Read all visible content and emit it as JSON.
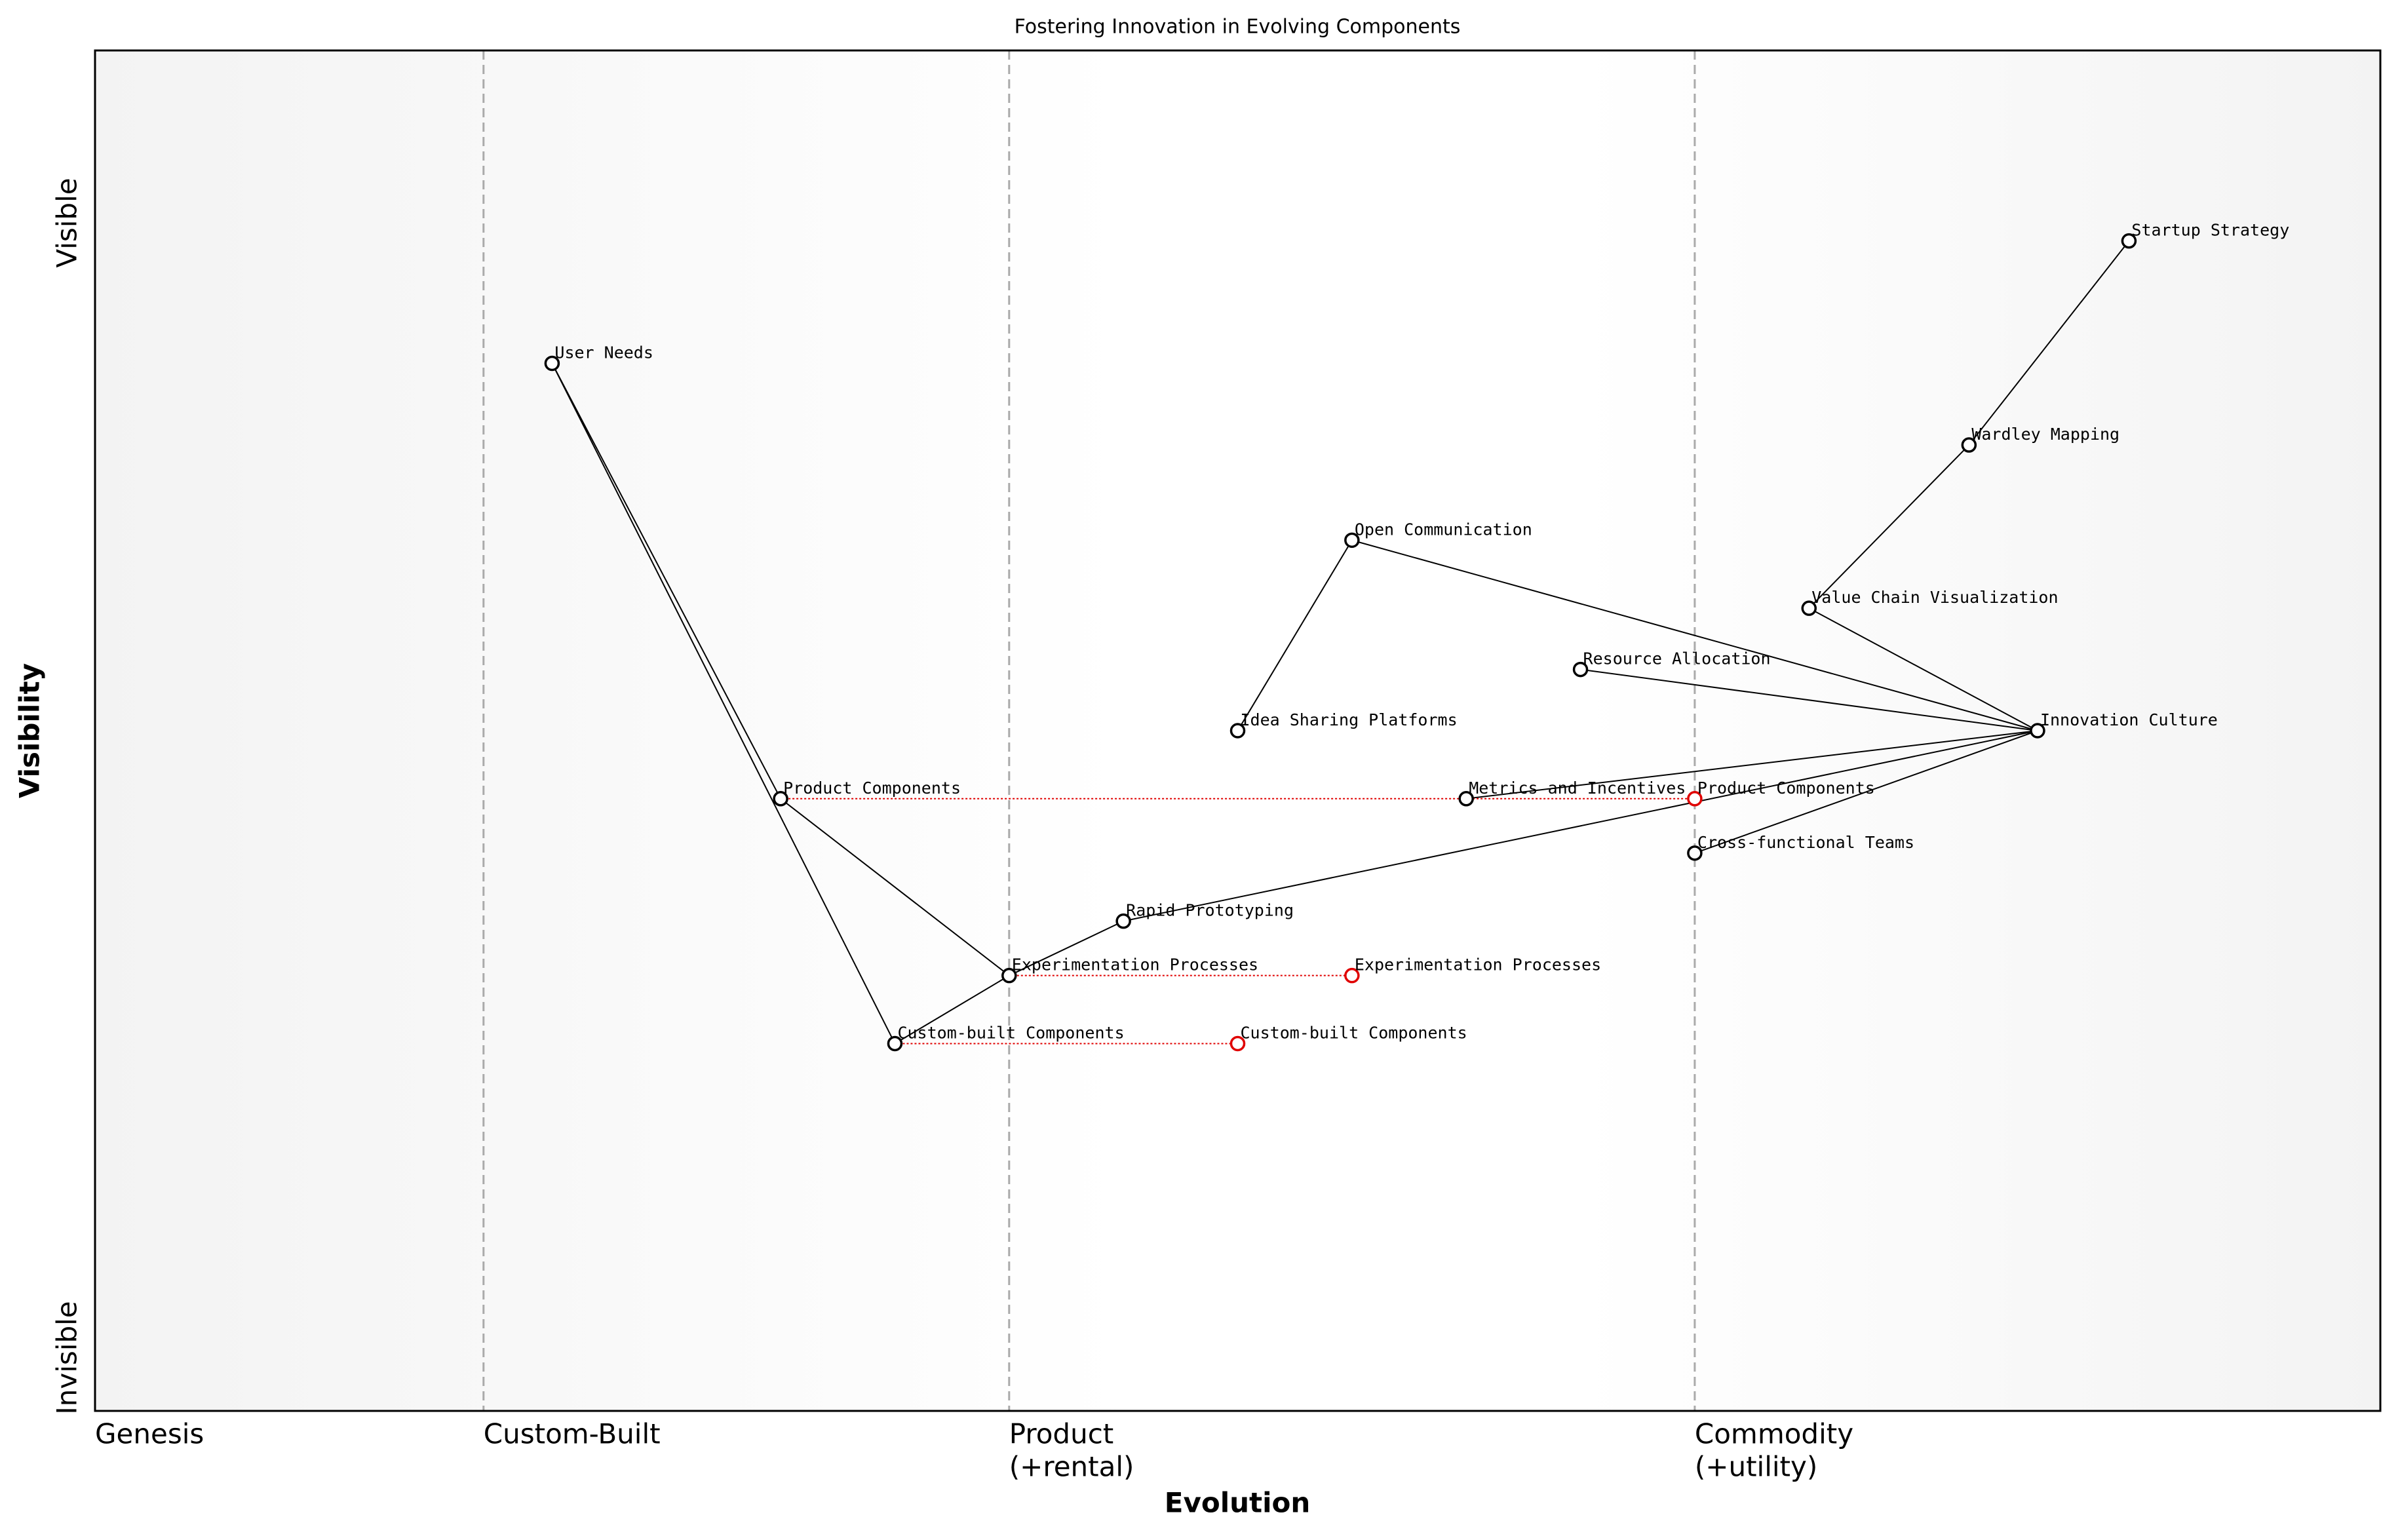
{
  "chart_data": {
    "type": "wardley",
    "title": "Fostering Innovation in Evolving Components",
    "x_label": "Evolution",
    "y_label": "Visibility",
    "y_top_label": "Visible",
    "y_bottom_label": "Invisible",
    "xlim": [
      0,
      1
    ],
    "ylim": [
      0,
      1
    ],
    "stages": [
      {
        "x": 0,
        "lines": [
          "Genesis"
        ]
      },
      {
        "x": 0.17,
        "lines": [
          "Custom-Built"
        ]
      },
      {
        "x": 0.4,
        "lines": [
          "Product",
          "(+rental)"
        ]
      },
      {
        "x": 0.7,
        "lines": [
          "Commodity",
          "(+utility)"
        ]
      }
    ],
    "nodes": [
      {
        "name": "Startup Strategy",
        "x": 0.89,
        "y": 0.86
      },
      {
        "name": "Wardley Mapping",
        "x": 0.82,
        "y": 0.71
      },
      {
        "name": "Value Chain Visualization",
        "x": 0.75,
        "y": 0.59
      },
      {
        "name": "Innovation Culture",
        "x": 0.85,
        "y": 0.5
      },
      {
        "name": "Resource Allocation",
        "x": 0.65,
        "y": 0.545
      },
      {
        "name": "Open Communication",
        "x": 0.55,
        "y": 0.64
      },
      {
        "name": "Idea Sharing Platforms",
        "x": 0.5,
        "y": 0.5
      },
      {
        "name": "Metrics and Incentives",
        "x": 0.6,
        "y": 0.45
      },
      {
        "name": "Product Components",
        "x": 0.3,
        "y": 0.45
      },
      {
        "name": "Cross-functional Teams",
        "x": 0.7,
        "y": 0.41
      },
      {
        "name": "Rapid Prototyping",
        "x": 0.45,
        "y": 0.36
      },
      {
        "name": "Experimentation Processes",
        "x": 0.4,
        "y": 0.32
      },
      {
        "name": "Custom-built Components",
        "x": 0.35,
        "y": 0.27
      },
      {
        "name": "User Needs",
        "x": 0.2,
        "y": 0.77
      }
    ],
    "links": [
      [
        "Startup Strategy",
        "Wardley Mapping"
      ],
      [
        "Wardley Mapping",
        "Value Chain Visualization"
      ],
      [
        "Value Chain Visualization",
        "Innovation Culture"
      ],
      [
        "Open Communication",
        "Innovation Culture"
      ],
      [
        "Resource Allocation",
        "Innovation Culture"
      ],
      [
        "Metrics and Incentives",
        "Innovation Culture"
      ],
      [
        "Cross-functional Teams",
        "Innovation Culture"
      ],
      [
        "Rapid Prototyping",
        "Innovation Culture"
      ],
      [
        "Idea Sharing Platforms",
        "Open Communication"
      ],
      [
        "User Needs",
        "Product Components"
      ],
      [
        "User Needs",
        "Custom-built Components"
      ],
      [
        "Product Components",
        "Experimentation Processes"
      ],
      [
        "Experimentation Processes",
        "Rapid Prototyping"
      ],
      [
        "Custom-built Components",
        "Experimentation Processes"
      ]
    ],
    "evolve": [
      {
        "name": "Product Components",
        "x": 0.7
      },
      {
        "name": "Experimentation Processes",
        "x": 0.55
      },
      {
        "name": "Custom-built Components",
        "x": 0.5
      }
    ],
    "evolve_color": "#e00000"
  }
}
